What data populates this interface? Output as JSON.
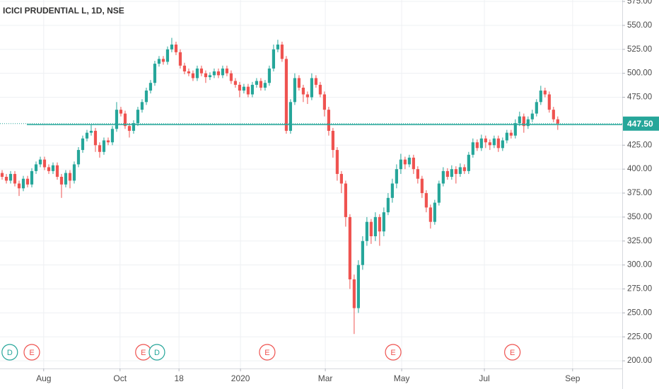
{
  "chart_data": {
    "type": "candlestick",
    "title": "ICICI PRUDENTIAL L, 1D, NSE",
    "up_color": "#26a69a",
    "down_color": "#ef5350",
    "xlim": [
      -0.5,
      146.2
    ],
    "ylim": [
      192,
      576.5
    ],
    "xticks": [
      {
        "value": 9.8,
        "label": "Aug"
      },
      {
        "value": 27.8,
        "label": "Oct"
      },
      {
        "value": 41.7,
        "label": "18"
      },
      {
        "value": 56.2,
        "label": "2020"
      },
      {
        "value": 76.2,
        "label": "Mar"
      },
      {
        "value": 94.2,
        "label": "May"
      },
      {
        "value": 113.7,
        "label": "Jul"
      },
      {
        "value": 134.5,
        "label": "Sep"
      }
    ],
    "yticks": [
      {
        "value": 575,
        "label": "575.00"
      },
      {
        "value": 550,
        "label": "550.00"
      },
      {
        "value": 525,
        "label": "525.00"
      },
      {
        "value": 500,
        "label": "500.00"
      },
      {
        "value": 475,
        "label": "475.00"
      },
      {
        "value": 425,
        "label": "425.00"
      },
      {
        "value": 400,
        "label": "400.00"
      },
      {
        "value": 375,
        "label": "375.00"
      },
      {
        "value": 350,
        "label": "350.00"
      },
      {
        "value": 325,
        "label": "325.00"
      },
      {
        "value": 300,
        "label": "300.00"
      },
      {
        "value": 275,
        "label": "275.00"
      },
      {
        "value": 250,
        "label": "250.00"
      },
      {
        "value": 225,
        "label": "225.00"
      },
      {
        "value": 200,
        "label": "200.00"
      }
    ],
    "grid": true,
    "last_price": {
      "value": 447.5,
      "label": "447.50",
      "color": "#26a69a"
    },
    "horizontal_line": 446.5,
    "events": [
      {
        "label": "D",
        "x": 1.8,
        "color": "#26a69a"
      },
      {
        "label": "E",
        "x": 7,
        "color": "#ef5350"
      },
      {
        "label": "E",
        "x": 33.3,
        "color": "#ef5350"
      },
      {
        "label": "D",
        "x": 36.5,
        "color": "#26a69a"
      },
      {
        "label": "E",
        "x": 62.5,
        "color": "#ef5350"
      },
      {
        "label": "E",
        "x": 92.2,
        "color": "#ef5350"
      },
      {
        "label": "E",
        "x": 120.3,
        "color": "#ef5350"
      }
    ],
    "open": [
      396,
      392,
      388,
      395,
      385,
      380,
      390,
      384,
      398,
      405,
      410,
      402,
      398,
      404,
      392,
      384,
      396,
      388,
      405,
      420,
      432,
      438,
      440,
      425,
      418,
      430,
      428,
      442,
      462,
      458,
      445,
      440,
      448,
      462,
      470,
      482,
      490,
      510,
      515,
      512,
      525,
      530,
      522,
      508,
      502,
      500,
      495,
      505,
      500,
      496,
      498,
      502,
      498,
      505,
      500,
      492,
      488,
      482,
      486,
      478,
      488,
      492,
      485,
      490,
      505,
      525,
      530,
      515,
      440,
      470,
      495,
      485,
      478,
      475,
      495,
      488,
      478,
      462,
      440,
      420,
      395,
      385,
      350,
      285,
      255,
      300,
      325,
      345,
      330,
      350,
      335,
      355,
      370,
      385,
      400,
      410,
      405,
      412,
      400,
      390,
      375,
      360,
      345,
      365,
      385,
      398,
      392,
      400,
      395,
      402,
      398,
      415,
      428,
      422,
      432,
      428,
      425,
      432,
      422,
      430,
      438,
      435,
      448,
      455,
      445,
      452,
      458,
      470,
      482,
      478,
      462,
      452
    ],
    "high": [
      399,
      395,
      398,
      398,
      388,
      393,
      393,
      401,
      408,
      413,
      413,
      405,
      407,
      407,
      395,
      399,
      399,
      408,
      423,
      435,
      441,
      446,
      443,
      428,
      433,
      433,
      445,
      470,
      465,
      461,
      448,
      451,
      465,
      473,
      485,
      493,
      513,
      518,
      518,
      528,
      537,
      533,
      525,
      511,
      505,
      503,
      508,
      508,
      503,
      501,
      505,
      505,
      508,
      508,
      503,
      495,
      491,
      489,
      489,
      491,
      495,
      495,
      493,
      508,
      530,
      535,
      533,
      518,
      473,
      500,
      498,
      488,
      481,
      500,
      498,
      491,
      481,
      465,
      443,
      423,
      398,
      388,
      353,
      290,
      305,
      330,
      350,
      348,
      355,
      353,
      360,
      375,
      390,
      405,
      416,
      413,
      415,
      415,
      403,
      393,
      378,
      363,
      368,
      388,
      402,
      401,
      404,
      403,
      406,
      405,
      418,
      432,
      431,
      436,
      435,
      431,
      435,
      435,
      433,
      441,
      441,
      452,
      460,
      458,
      455,
      462,
      473,
      487,
      485,
      481,
      465,
      455
    ],
    "low": [
      389,
      385,
      385,
      382,
      372,
      377,
      381,
      381,
      395,
      402,
      399,
      395,
      395,
      389,
      370,
      381,
      380,
      385,
      402,
      417,
      429,
      435,
      418,
      412,
      415,
      425,
      425,
      439,
      455,
      442,
      433,
      437,
      445,
      459,
      467,
      479,
      487,
      507,
      509,
      509,
      522,
      519,
      505,
      499,
      497,
      492,
      492,
      497,
      490,
      493,
      495,
      495,
      495,
      497,
      489,
      485,
      475,
      479,
      475,
      475,
      485,
      482,
      482,
      487,
      502,
      522,
      512,
      437,
      437,
      467,
      482,
      470,
      468,
      472,
      485,
      475,
      455,
      435,
      412,
      388,
      375,
      340,
      275,
      228,
      250,
      295,
      320,
      322,
      325,
      320,
      330,
      352,
      365,
      380,
      395,
      400,
      402,
      395,
      385,
      370,
      355,
      338,
      342,
      362,
      382,
      389,
      389,
      385,
      392,
      395,
      395,
      412,
      419,
      419,
      422,
      420,
      422,
      418,
      419,
      427,
      432,
      432,
      445,
      438,
      442,
      449,
      455,
      467,
      475,
      459,
      449,
      441
    ],
    "close": [
      392,
      388,
      395,
      385,
      380,
      390,
      384,
      398,
      405,
      410,
      402,
      398,
      404,
      392,
      384,
      396,
      388,
      405,
      420,
      432,
      438,
      440,
      425,
      418,
      430,
      428,
      442,
      462,
      458,
      445,
      440,
      448,
      462,
      470,
      482,
      490,
      510,
      515,
      512,
      525,
      530,
      522,
      508,
      502,
      500,
      495,
      505,
      500,
      496,
      498,
      502,
      498,
      505,
      500,
      492,
      488,
      482,
      486,
      478,
      488,
      492,
      485,
      490,
      505,
      525,
      530,
      515,
      440,
      470,
      495,
      485,
      478,
      475,
      495,
      488,
      478,
      462,
      440,
      420,
      395,
      385,
      350,
      285,
      255,
      300,
      325,
      345,
      330,
      350,
      335,
      355,
      370,
      385,
      400,
      410,
      405,
      412,
      400,
      390,
      375,
      360,
      345,
      365,
      385,
      398,
      392,
      400,
      395,
      402,
      398,
      415,
      428,
      422,
      432,
      428,
      425,
      432,
      422,
      430,
      438,
      435,
      448,
      455,
      445,
      452,
      458,
      470,
      482,
      478,
      462,
      452,
      447.5
    ]
  }
}
